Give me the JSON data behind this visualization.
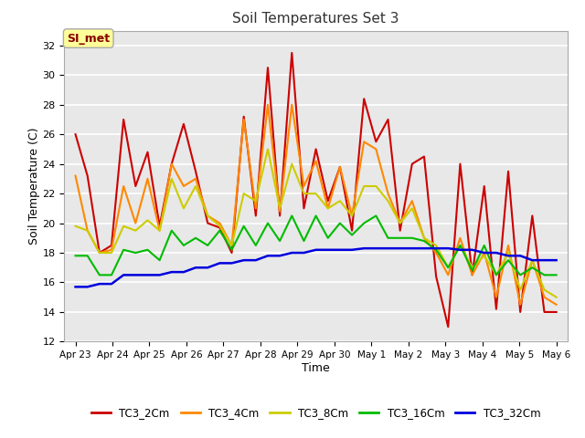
{
  "title": "Soil Temperatures Set 3",
  "xlabel": "Time",
  "ylabel": "Soil Temperature (C)",
  "ylim": [
    12,
    33
  ],
  "yticks": [
    12,
    14,
    16,
    18,
    20,
    22,
    24,
    26,
    28,
    30,
    32
  ],
  "fig_bg_color": "#ffffff",
  "plot_bg_color": "#e8e8e8",
  "grid_color": "#ffffff",
  "annotation_text": "SI_met",
  "annotation_bg": "#ffff99",
  "annotation_border": "#aaaaaa",
  "annotation_text_color": "#880000",
  "series": {
    "TC3_2Cm": {
      "color": "#cc0000",
      "lw": 1.5
    },
    "TC3_4Cm": {
      "color": "#ff8800",
      "lw": 1.5
    },
    "TC3_8Cm": {
      "color": "#cccc00",
      "lw": 1.5
    },
    "TC3_16Cm": {
      "color": "#00bb00",
      "lw": 1.5
    },
    "TC3_32Cm": {
      "color": "#0000dd",
      "lw": 1.8
    }
  },
  "x_labels": [
    "Apr 23",
    "Apr 24",
    "Apr 25",
    "Apr 26",
    "Apr 27",
    "Apr 28",
    "Apr 29",
    "Apr 30",
    "May 1",
    "May 2",
    "May 3",
    "May 4",
    "May 5",
    "May 6"
  ],
  "TC3_2Cm": [
    26.0,
    23.2,
    18.0,
    18.5,
    27.0,
    22.5,
    24.8,
    19.8,
    24.0,
    26.7,
    23.5,
    20.0,
    19.7,
    18.0,
    27.2,
    20.5,
    30.5,
    20.5,
    31.5,
    21.0,
    25.0,
    21.5,
    23.8,
    19.5,
    28.4,
    25.5,
    27.0,
    19.5,
    24.0,
    24.5,
    16.4,
    13.0,
    24.0,
    16.5,
    22.5,
    14.2,
    23.5,
    14.0,
    20.5,
    14.0,
    14.0
  ],
  "TC3_4Cm": [
    23.2,
    19.5,
    18.0,
    18.2,
    22.5,
    20.0,
    23.0,
    19.5,
    24.0,
    22.5,
    23.0,
    20.5,
    20.0,
    18.5,
    27.0,
    21.0,
    28.0,
    20.8,
    28.0,
    22.5,
    24.2,
    21.0,
    23.8,
    20.5,
    25.5,
    25.0,
    22.0,
    20.0,
    21.5,
    19.0,
    18.0,
    16.5,
    19.0,
    16.5,
    18.0,
    15.0,
    18.5,
    14.5,
    17.5,
    15.0,
    14.5
  ],
  "TC3_8Cm": [
    19.8,
    19.5,
    18.0,
    18.0,
    19.8,
    19.5,
    20.2,
    19.5,
    23.0,
    21.0,
    22.5,
    20.5,
    19.8,
    18.5,
    22.0,
    21.5,
    25.0,
    21.0,
    24.0,
    22.0,
    22.0,
    21.0,
    21.5,
    20.5,
    22.5,
    22.5,
    21.5,
    20.0,
    21.0,
    19.0,
    18.5,
    17.0,
    18.5,
    17.0,
    17.8,
    16.5,
    18.0,
    15.5,
    17.5,
    15.5,
    15.0
  ],
  "TC3_16Cm": [
    17.8,
    17.8,
    16.5,
    16.5,
    18.2,
    18.0,
    18.2,
    17.5,
    19.5,
    18.5,
    19.0,
    18.5,
    19.5,
    18.2,
    19.8,
    18.5,
    20.0,
    18.8,
    20.5,
    18.8,
    20.5,
    19.0,
    20.0,
    19.2,
    20.0,
    20.5,
    19.0,
    19.0,
    19.0,
    18.8,
    18.2,
    17.0,
    18.5,
    16.8,
    18.5,
    16.5,
    17.5,
    16.5,
    17.0,
    16.5,
    16.5
  ],
  "TC3_32Cm": [
    15.7,
    15.7,
    15.9,
    15.9,
    16.5,
    16.5,
    16.5,
    16.5,
    16.7,
    16.7,
    17.0,
    17.0,
    17.3,
    17.3,
    17.5,
    17.5,
    17.8,
    17.8,
    18.0,
    18.0,
    18.2,
    18.2,
    18.2,
    18.2,
    18.3,
    18.3,
    18.3,
    18.3,
    18.3,
    18.3,
    18.3,
    18.3,
    18.2,
    18.2,
    18.0,
    18.0,
    17.8,
    17.8,
    17.5,
    17.5,
    17.5
  ]
}
